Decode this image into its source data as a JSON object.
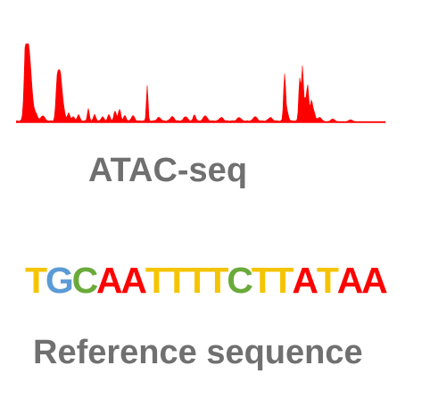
{
  "track": {
    "color": "#ff0000"
  },
  "atac_label": "ATAC-seq",
  "sequence": {
    "bases": [
      "T",
      "G",
      "C",
      "A",
      "A",
      "T",
      "T",
      "T",
      "T",
      "C",
      "T",
      "T",
      "A",
      "T",
      "A",
      "A"
    ],
    "colors": {
      "T": "#f5c400",
      "G": "#5b9bd5",
      "C": "#6aaa3a",
      "A": "#ff0000"
    }
  },
  "reference_label": "Reference sequence"
}
